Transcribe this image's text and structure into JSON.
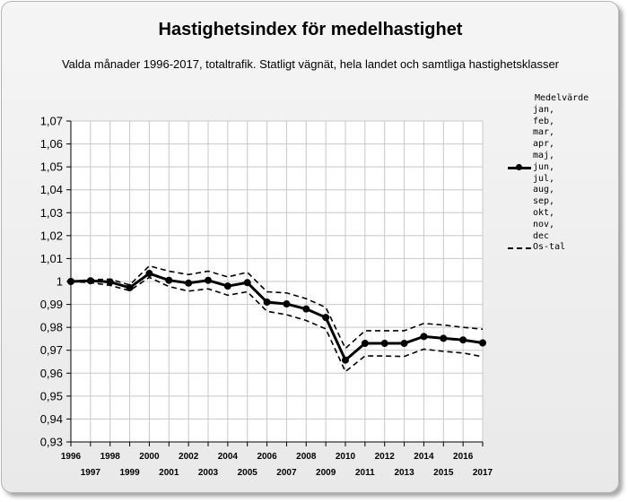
{
  "title": "Hastighetsindex för medelhastighet",
  "subtitle": "Valda månader 1996-2017, totaltrafik. Statligt vägnät, hela landet och samtliga hastighetsklasser",
  "chart_data": {
    "type": "line",
    "x": [
      1996,
      1997,
      1998,
      1999,
      2000,
      2001,
      2002,
      2003,
      2004,
      2005,
      2006,
      2007,
      2008,
      2009,
      2010,
      2011,
      2012,
      2013,
      2014,
      2015,
      2016,
      2017
    ],
    "x_tick_labels_top": [
      "1996",
      "1998",
      "2000",
      "2002",
      "2004",
      "2006",
      "2008",
      "2010",
      "2012",
      "2014",
      "2016"
    ],
    "x_tick_labels_bottom": [
      "1997",
      "1999",
      "2001",
      "2003",
      "2005",
      "2007",
      "2009",
      "2011",
      "2013",
      "2015",
      "2017"
    ],
    "y_tick_labels": [
      "1,07",
      "1,06",
      "1,05",
      "1,04",
      "1,03",
      "1,02",
      "1,01",
      "1",
      "0,99",
      "0,98",
      "0,97",
      "0,96",
      "0,95",
      "0,94",
      "0,93"
    ],
    "ylim": [
      0.93,
      1.07
    ],
    "grid": true,
    "legend_position": "right",
    "legend_header": "Medelvärde",
    "legend_months": [
      "jan,",
      "feb,",
      "mar,",
      "apr,",
      "maj,",
      "jun,",
      "jul,",
      "aug,",
      "sep,",
      "okt,",
      "nov,",
      "dec"
    ],
    "series": [
      {
        "name": "Medelvärde jan, feb, mar, apr, maj, jun, jul, aug, sep, okt, nov, dec",
        "style": "solid-markers",
        "values": [
          1.0,
          1.0003,
          0.9998,
          0.9973,
          1.0035,
          1.0005,
          0.9993,
          1.0005,
          0.998,
          0.9995,
          0.991,
          0.9902,
          0.988,
          0.9843,
          0.9657,
          0.973,
          0.973,
          0.973,
          0.976,
          0.9752,
          0.9745,
          0.9732
        ]
      },
      {
        "name": "Os-tal",
        "style": "dashed",
        "values": [
          1.0,
          1.0008,
          1.001,
          0.9985,
          1.0068,
          1.0045,
          1.003,
          1.0045,
          1.002,
          1.004,
          0.9955,
          0.995,
          0.9925,
          0.9887,
          0.9708,
          0.9785,
          0.9785,
          0.9785,
          0.9817,
          0.981,
          0.98,
          0.9792
        ]
      },
      {
        "name": "Os-tal",
        "style": "dashed",
        "values": [
          1.0,
          0.9995,
          0.9983,
          0.996,
          1.0018,
          0.9978,
          0.9958,
          0.9968,
          0.994,
          0.9955,
          0.987,
          0.9855,
          0.983,
          0.9793,
          0.9607,
          0.9675,
          0.9675,
          0.9673,
          0.9705,
          0.9695,
          0.9688,
          0.9672
        ]
      }
    ],
    "colors": {
      "line": "#000000",
      "grid": "#c8c8c8",
      "plot_background": "#ffffff"
    }
  }
}
